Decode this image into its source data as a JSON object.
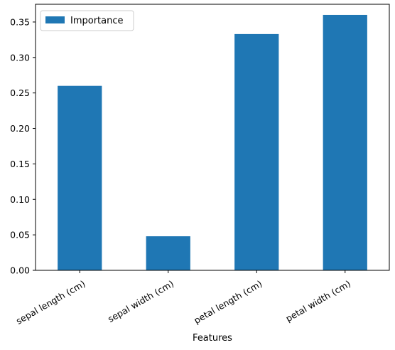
{
  "chart_data": {
    "type": "bar",
    "categories": [
      "sepal length (cm)",
      "sepal width (cm)",
      "petal length (cm)",
      "petal width (cm)"
    ],
    "series": [
      {
        "name": "Importance",
        "values": [
          0.26,
          0.048,
          0.333,
          0.36
        ],
        "color": "#1f77b4"
      }
    ],
    "xlabel": "Features",
    "ylabel": "",
    "ylim": [
      0,
      0.375
    ],
    "yticks": [
      "0.00",
      "0.05",
      "0.10",
      "0.15",
      "0.20",
      "0.25",
      "0.30",
      "0.35"
    ],
    "grid": false,
    "legend_position": "top-left"
  }
}
